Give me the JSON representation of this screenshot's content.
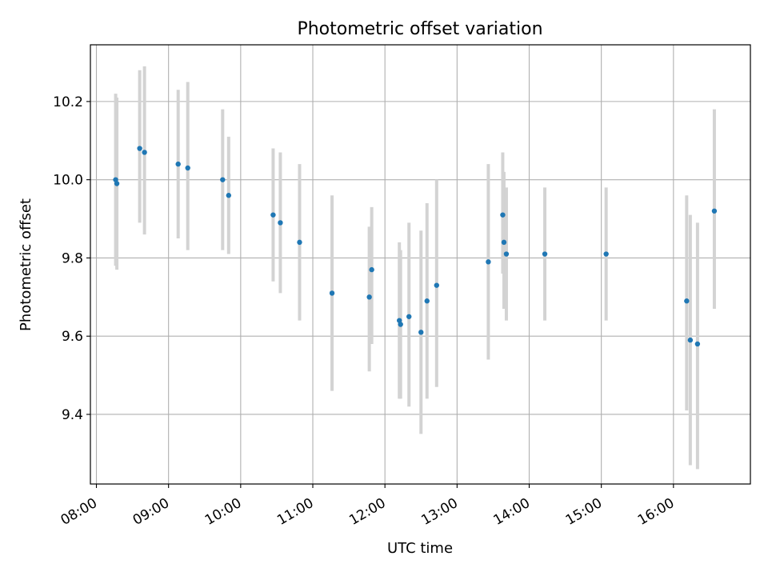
{
  "chart_data": {
    "type": "scatter",
    "title": "Photometric offset variation",
    "xlabel": "UTC time",
    "ylabel": "Photometric offset",
    "x_unit": "UTC time of day",
    "xlim": [
      "07:55",
      "17:04"
    ],
    "ylim": [
      9.222,
      10.345
    ],
    "x_ticks": [
      "08:00",
      "09:00",
      "10:00",
      "11:00",
      "12:00",
      "13:00",
      "14:00",
      "15:00",
      "16:00"
    ],
    "y_ticks": [
      "9.4",
      "9.6",
      "9.8",
      "10.0",
      "10.2"
    ],
    "grid": true,
    "legend": "none",
    "colors": {
      "points": "#1f77b4",
      "error_bars": "#d3d3d3",
      "grid": "#b0b0b0"
    },
    "series": [
      {
        "points": [
          {
            "x": "08:16",
            "y": 10.0,
            "ylo": 9.78,
            "yhi": 10.22
          },
          {
            "x": "08:17",
            "y": 9.99,
            "ylo": 9.77,
            "yhi": 10.21
          },
          {
            "x": "08:36",
            "y": 10.08,
            "ylo": 9.89,
            "yhi": 10.28
          },
          {
            "x": "08:40",
            "y": 10.07,
            "ylo": 9.86,
            "yhi": 10.29
          },
          {
            "x": "09:08",
            "y": 10.04,
            "ylo": 9.85,
            "yhi": 10.23
          },
          {
            "x": "09:16",
            "y": 10.03,
            "ylo": 9.82,
            "yhi": 10.25
          },
          {
            "x": "09:45",
            "y": 10.0,
            "ylo": 9.82,
            "yhi": 10.18
          },
          {
            "x": "09:50",
            "y": 9.96,
            "ylo": 9.81,
            "yhi": 10.11
          },
          {
            "x": "10:27",
            "y": 9.91,
            "ylo": 9.74,
            "yhi": 10.08
          },
          {
            "x": "10:33",
            "y": 9.89,
            "ylo": 9.71,
            "yhi": 10.07
          },
          {
            "x": "10:49",
            "y": 9.84,
            "ylo": 9.64,
            "yhi": 10.04
          },
          {
            "x": "11:16",
            "y": 9.71,
            "ylo": 9.46,
            "yhi": 9.96
          },
          {
            "x": "11:47",
            "y": 9.7,
            "ylo": 9.51,
            "yhi": 9.88
          },
          {
            "x": "11:49",
            "y": 9.77,
            "ylo": 9.58,
            "yhi": 9.93
          },
          {
            "x": "12:12",
            "y": 9.64,
            "ylo": 9.44,
            "yhi": 9.84
          },
          {
            "x": "12:13",
            "y": 9.63,
            "ylo": 9.44,
            "yhi": 9.82
          },
          {
            "x": "12:20",
            "y": 9.65,
            "ylo": 9.42,
            "yhi": 9.89
          },
          {
            "x": "12:30",
            "y": 9.61,
            "ylo": 9.35,
            "yhi": 9.87
          },
          {
            "x": "12:35",
            "y": 9.69,
            "ylo": 9.44,
            "yhi": 9.94
          },
          {
            "x": "12:43",
            "y": 9.73,
            "ylo": 9.47,
            "yhi": 10.0
          },
          {
            "x": "13:26",
            "y": 9.79,
            "ylo": 9.54,
            "yhi": 10.04
          },
          {
            "x": "13:38",
            "y": 9.91,
            "ylo": 9.76,
            "yhi": 10.07
          },
          {
            "x": "13:39",
            "y": 9.84,
            "ylo": 9.67,
            "yhi": 10.02
          },
          {
            "x": "13:41",
            "y": 9.81,
            "ylo": 9.64,
            "yhi": 9.98
          },
          {
            "x": "14:13",
            "y": 9.81,
            "ylo": 9.64,
            "yhi": 9.98
          },
          {
            "x": "15:04",
            "y": 9.81,
            "ylo": 9.64,
            "yhi": 9.98
          },
          {
            "x": "16:11",
            "y": 9.69,
            "ylo": 9.41,
            "yhi": 9.96
          },
          {
            "x": "16:14",
            "y": 9.59,
            "ylo": 9.27,
            "yhi": 9.91
          },
          {
            "x": "16:20",
            "y": 9.58,
            "ylo": 9.26,
            "yhi": 9.89
          },
          {
            "x": "16:34",
            "y": 9.92,
            "ylo": 9.67,
            "yhi": 10.18
          }
        ]
      }
    ]
  }
}
